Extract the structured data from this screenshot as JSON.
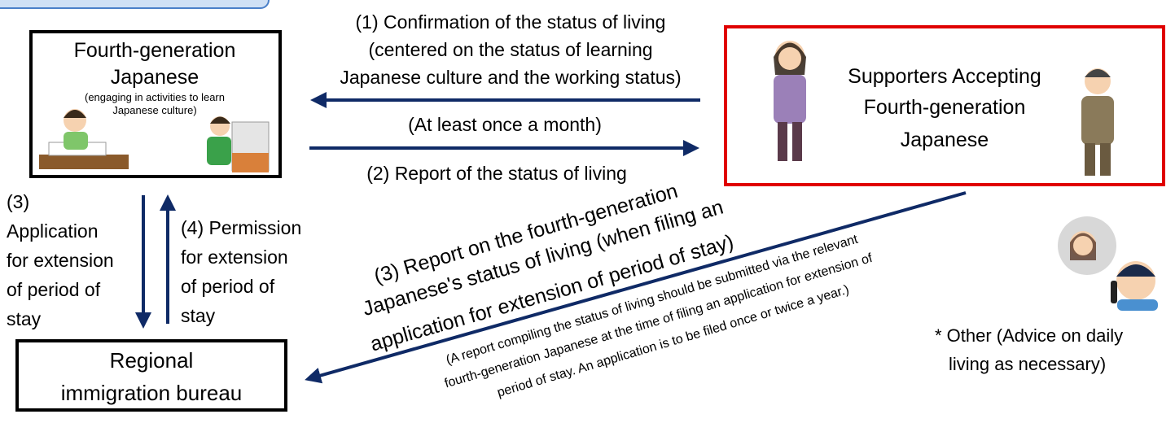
{
  "diagram": {
    "nodes": [
      {
        "label_lines": [
          "Fourth-generation",
          "Japanese"
        ],
        "note_lines": [
          "(engaging in activities to learn",
          "Japanese culture)"
        ]
      },
      {
        "label_lines": [
          "Supporters Accepting",
          "Fourth-generation",
          "Japanese"
        ]
      },
      {
        "label_lines": [
          "Regional",
          "immigration bureau"
        ]
      }
    ],
    "flows": [
      {
        "label_lines": [
          "(1) Confirmation of the status of living",
          "(centered on the status of learning",
          "Japanese culture and the working status)"
        ]
      },
      {
        "label_lines": [
          "(At least once a month)"
        ]
      },
      {
        "label_lines": [
          "(2) Report of the status of living"
        ]
      },
      {
        "label_lines": [
          "(3)",
          "Application",
          "for extension",
          "of period of",
          "stay"
        ]
      },
      {
        "label_lines": [
          "(4) Permission",
          "for extension",
          "of period of",
          "stay"
        ]
      },
      {
        "label_lines": [
          "(3) Report on the fourth-generation",
          "Japanese's status of living (when filing an",
          "application for extension of period of stay)"
        ],
        "note_lines": [
          "(A report compiling the status of living should be submitted via the relevant",
          "fourth-generation Japanese at the time of filing an application for extension of",
          "period of stay. An application is to be filed once or twice a year.)"
        ]
      }
    ],
    "other": {
      "label_lines": [
        "* Other (Advice on daily",
        "living as necessary)"
      ]
    }
  }
}
